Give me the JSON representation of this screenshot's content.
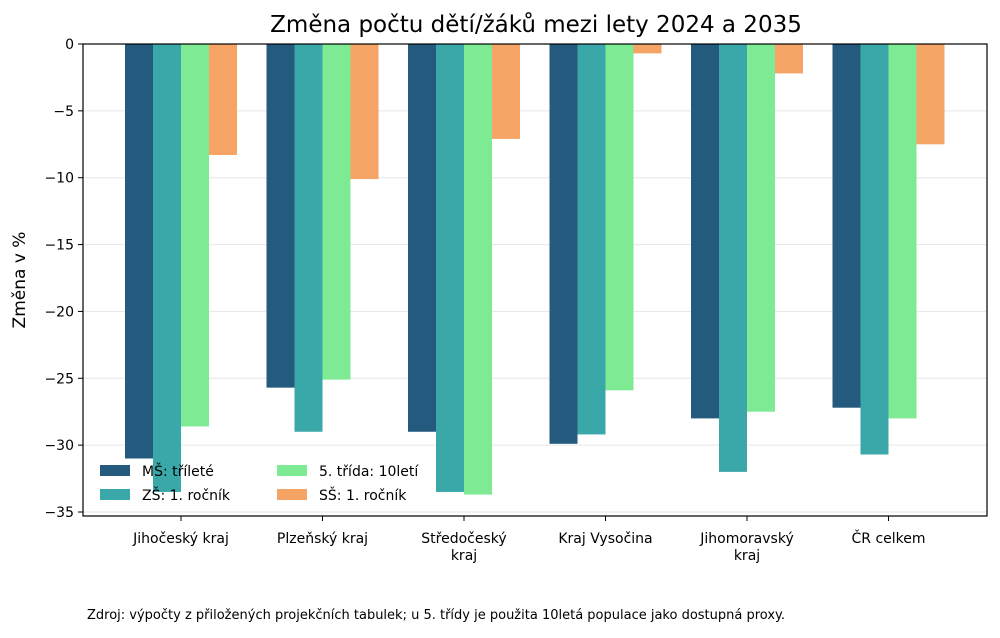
{
  "chart_data": {
    "type": "bar",
    "title": "Změna počtu dětí/žáků mezi lety 2024 a 2035",
    "xlabel": "",
    "ylabel": "Změna v %",
    "ylim": [
      -35.3,
      0
    ],
    "yticks": [
      0,
      -5,
      -10,
      -15,
      -20,
      -25,
      -30,
      -35
    ],
    "grid": "horizontal",
    "legend_position": "lower-left",
    "categories": [
      [
        "Jihočeský kraj"
      ],
      [
        "Plzeňský kraj"
      ],
      [
        "Středočeský",
        "kraj"
      ],
      [
        "Kraj Vysočina"
      ],
      [
        "Jihomoravský",
        "kraj"
      ],
      [
        "ČR celkem"
      ]
    ],
    "series": [
      {
        "name": "MŠ: tříleté",
        "color": "#235a7d",
        "values": [
          -31.0,
          -25.7,
          -29.0,
          -29.9,
          -28.0,
          -27.2
        ]
      },
      {
        "name": "ZŠ: 1. ročník",
        "color": "#3aa7a8",
        "values": [
          -33.5,
          -29.0,
          -33.5,
          -29.2,
          -32.0,
          -30.7
        ]
      },
      {
        "name": "5. třída: 10letí",
        "color": "#7eea93",
        "values": [
          -28.6,
          -25.1,
          -33.7,
          -25.9,
          -27.5,
          -28.0
        ]
      },
      {
        "name": "SŠ: 1. ročník",
        "color": "#f6a465",
        "values": [
          -8.3,
          -10.1,
          -7.1,
          -0.7,
          -2.2,
          -7.5
        ]
      }
    ]
  },
  "footer": {
    "source": "Zdroj: výpočty z přiložených projekčních tabulek; u 5. třídy je použita 10letá populace jako dostupná proxy."
  }
}
